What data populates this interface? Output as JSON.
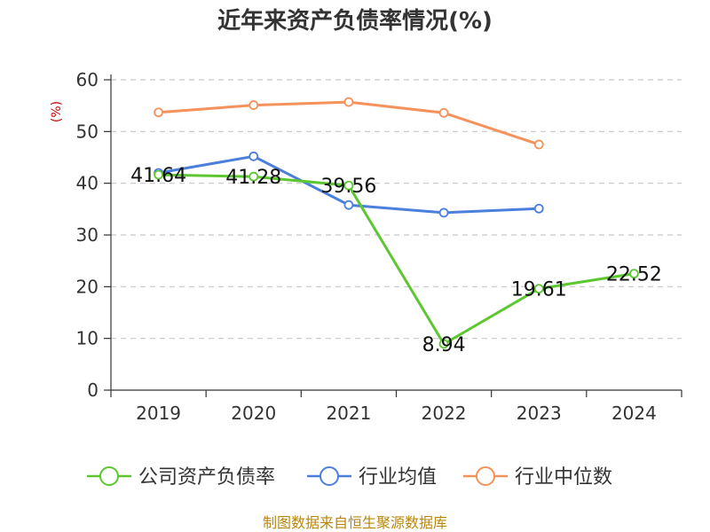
{
  "chart_data": {
    "type": "line",
    "title": "近年来资产负债率情况(%)",
    "ylabel": "(%)",
    "xlabel": "",
    "categories": [
      "2019",
      "2020",
      "2021",
      "2022",
      "2023",
      "2024"
    ],
    "ylim": [
      0,
      60
    ],
    "yticks": [
      0,
      10,
      20,
      30,
      40,
      50,
      60
    ],
    "grid": true,
    "legend_position": "bottom",
    "series": [
      {
        "name": "公司资产负债率",
        "color": "#5cc731",
        "values": [
          41.64,
          41.28,
          39.56,
          8.94,
          19.61,
          22.52
        ],
        "labels": [
          "41.64",
          "41.28",
          "39.56",
          "8.94",
          "19.61",
          "22.52"
        ]
      },
      {
        "name": "行业均值",
        "color": "#4a7fdb",
        "values": [
          42.0,
          45.2,
          35.8,
          34.3,
          35.1,
          null
        ]
      },
      {
        "name": "行业中位数",
        "color": "#f5915a",
        "values": [
          53.7,
          55.1,
          55.7,
          53.6,
          47.5,
          null
        ]
      }
    ]
  },
  "source": "制图数据来自恒生聚源数据库"
}
